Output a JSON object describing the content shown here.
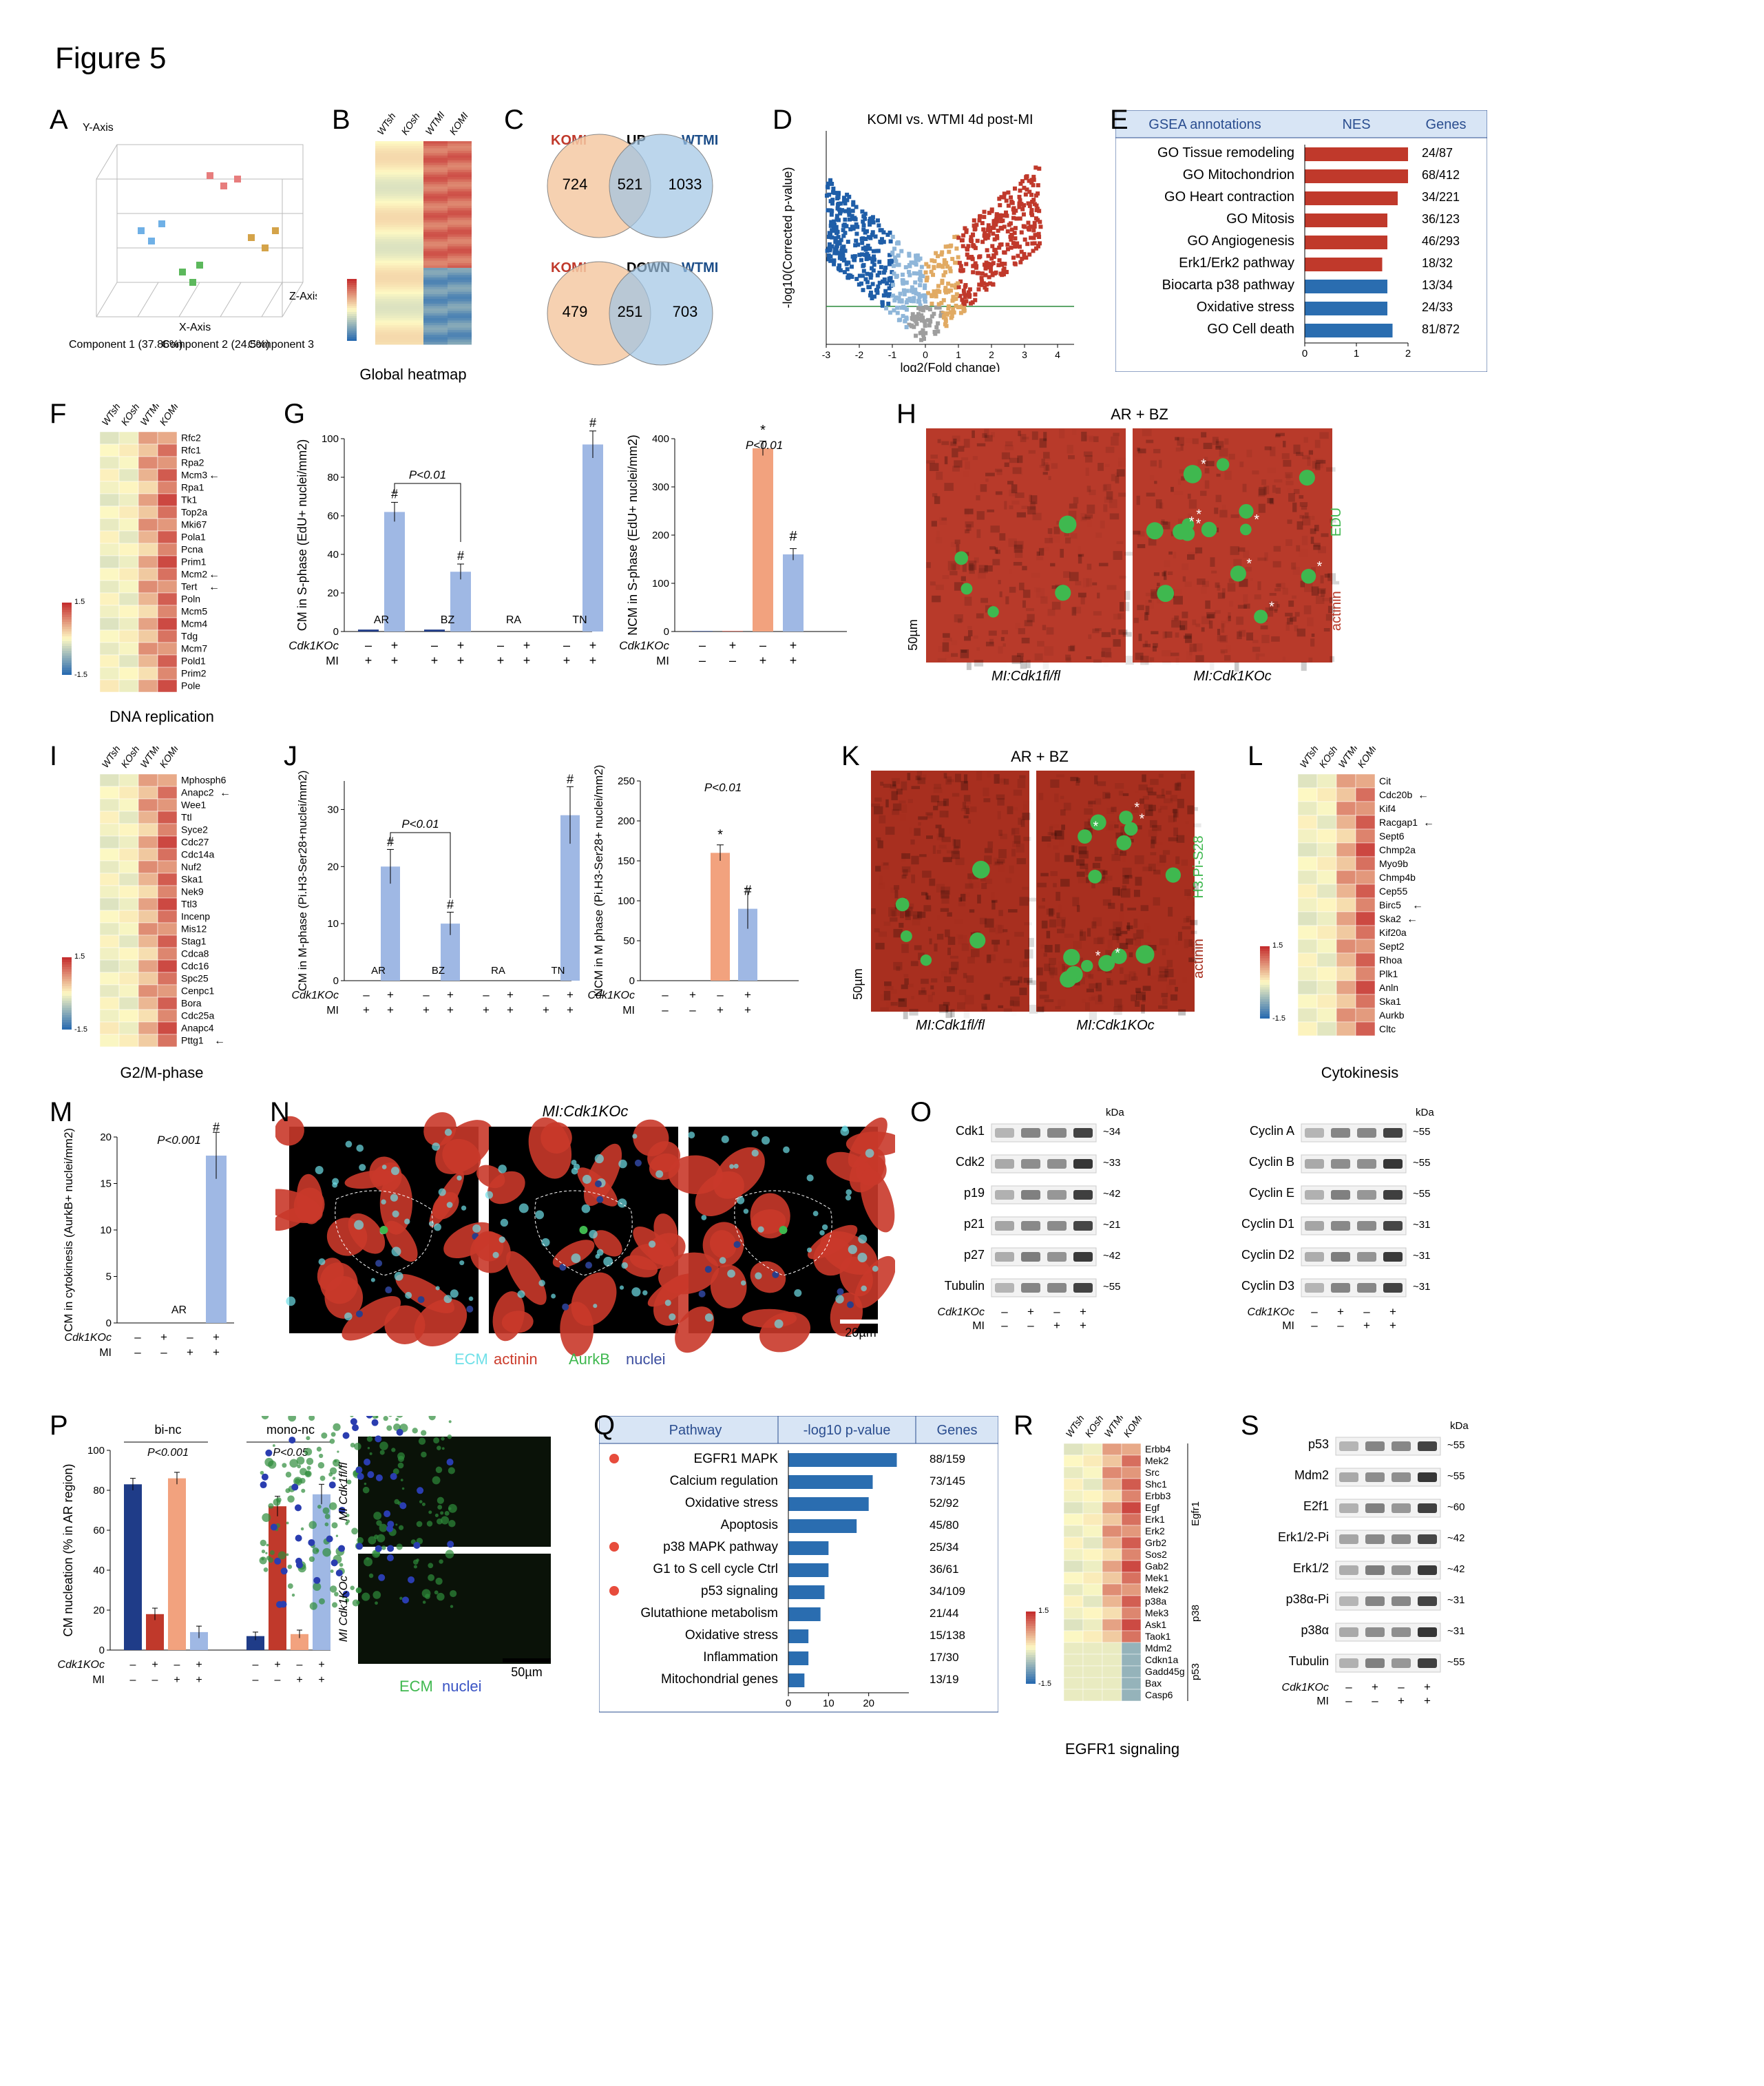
{
  "figure_title": "Figure 5",
  "panels": {
    "A": {
      "label": "A",
      "axes": [
        "X-Axis",
        "Y-Axis",
        "Z-Axis"
      ],
      "components": [
        "Component 1 (37.86%)",
        "Component 2 (24.5%)",
        "Component 3 (21.7%)"
      ],
      "point_colors": [
        "#6fb0e6",
        "#e77d7d",
        "#5cb85c",
        "#d4a349"
      ]
    },
    "B": {
      "label": "B",
      "caption": "Global heatmap",
      "cols": [
        "WTsh",
        "KOsh",
        "WTMI",
        "KOMI"
      ],
      "heatmap_low": "#2b6cb0",
      "heatmap_mid": "#fef9c3",
      "heatmap_high": "#c53030"
    },
    "C": {
      "label": "C",
      "up": {
        "left_label": "KOMI",
        "left_label_color": "#c0392b",
        "right_label": "WTMI",
        "right_label_color": "#1d4e89",
        "title": "UP",
        "left_n": 724,
        "inter_n": 521,
        "right_n": 1033,
        "left_fill": "#f4c9a3",
        "right_fill": "#9fc4e4"
      },
      "down": {
        "left_label": "KOMI",
        "left_label_color": "#c0392b",
        "right_label": "WTMI",
        "right_label_color": "#1d4e89",
        "title": "DOWN",
        "left_n": 479,
        "inter_n": 251,
        "right_n": 703,
        "left_fill": "#f4c9a3",
        "right_fill": "#9fc4e4"
      }
    },
    "D": {
      "label": "D",
      "title": "KOMI vs. WTMI 4d post-MI",
      "xlabel": "log2(Fold change)",
      "ylabel": "-log10(Corrected p-value)",
      "xlim": [
        -3,
        4.5
      ],
      "ylim": [
        0,
        9
      ],
      "colors": {
        "sig_down": "#1f5ea8",
        "ns_down": "#8fb6d9",
        "sig_up": "#c0392b",
        "ns_up": "#e1aa63",
        "ns": "#9e9e9e"
      },
      "threshold_y": 1.6
    },
    "E": {
      "label": "E",
      "headers": [
        "GSEA annotations",
        "NES",
        "Genes"
      ],
      "rows": [
        {
          "name": "GO Tissue remodeling",
          "nes": 2.0,
          "genes": "24/87",
          "neg": false
        },
        {
          "name": "GO Mitochondrion",
          "nes": 2.0,
          "genes": "68/412",
          "neg": false
        },
        {
          "name": "GO Heart contraction",
          "nes": 1.8,
          "genes": "34/221",
          "neg": false
        },
        {
          "name": "GO Mitosis",
          "nes": 1.6,
          "genes": "36/123",
          "neg": false
        },
        {
          "name": "GO Angiogenesis",
          "nes": 1.6,
          "genes": "46/293",
          "neg": false
        },
        {
          "name": "Erk1/Erk2 pathway",
          "nes": 1.5,
          "genes": "18/32",
          "neg": false
        },
        {
          "name": "Biocarta p38 pathway",
          "nes": 1.6,
          "genes": "13/34",
          "neg": true
        },
        {
          "name": "Oxidative stress",
          "nes": 1.6,
          "genes": "24/33",
          "neg": true
        },
        {
          "name": "GO Cell death",
          "nes": 1.7,
          "genes": "81/872",
          "neg": true
        }
      ],
      "bar_pos": "#c0392b",
      "bar_neg": "#2a6db0",
      "bg": "#d8e5f5",
      "xlim": [
        0,
        2
      ]
    },
    "F": {
      "label": "F",
      "caption": "DNA replication",
      "cols": [
        "WTsh",
        "KOsh",
        "WTMI",
        "KOMI"
      ],
      "genes": [
        "Rfc2",
        "Rfc1",
        "Rpa2",
        "Mcm3",
        "Rpa1",
        "Tk1",
        "Top2a",
        "Mki67",
        "Pola1",
        "Pcna",
        "Prim1",
        "Mcm2",
        "Tert",
        "Poln",
        "Mcm5",
        "Mcm4",
        "Tdg",
        "Mcm7",
        "Pold1",
        "Prim2",
        "Pole"
      ],
      "arrows": [
        "Mcm3",
        "Mcm2",
        "Tert"
      ],
      "low": "#2b6cb0",
      "mid": "#fef9c3",
      "high": "#c53030"
    },
    "G": {
      "label": "G",
      "left": {
        "ylabel": "CM in S-phase\n(EdU+ nuclei/mm2)",
        "ylim": [
          0,
          100
        ],
        "ytick": 20,
        "groups": [
          "AR",
          "BZ",
          "RA",
          "TN"
        ],
        "vals_ctrl": [
          1,
          1,
          0,
          0
        ],
        "vals_ko": [
          62,
          31,
          0,
          97
        ],
        "err_ctrl": [
          0,
          0,
          0,
          0
        ],
        "err_ko": [
          5,
          4,
          0,
          7
        ],
        "pvals": [
          {
            "between": [
              0,
              1
            ],
            "text": "P<0.01"
          }
        ],
        "hashes": [
          0,
          1,
          3
        ]
      },
      "right": {
        "ylabel": "NCM in S-phase\n(EdU+ nuclei/mm2)",
        "ylim": [
          0,
          400
        ],
        "ytick": 100,
        "groups": [
          ""
        ],
        "conditions": [
          "-- -",
          "- + -",
          "-- +",
          "- + +"
        ],
        "bars": [
          1,
          1,
          380,
          160
        ],
        "errs": [
          0,
          0,
          15,
          12
        ],
        "colors": [
          "#1f3c88",
          "#c0392b",
          "#f2a27e",
          "#9fb8e4"
        ],
        "anno": [
          {
            "i": 2,
            "text": "*"
          },
          {
            "i": 3,
            "text": "#"
          }
        ],
        "pval": "P<0.01"
      },
      "xlabels": [
        "Cdk1KOc",
        "MI"
      ],
      "bar_ctrl": "#1f3c88",
      "bar_ko": "#9fb8e4"
    },
    "H": {
      "label": "H",
      "title": "AR + BZ",
      "scale": "50µm",
      "red": "#b83a2a",
      "green": "#3fb84f",
      "left_caption": "MI:Cdk1fl/fl",
      "right_caption": "MI:Cdk1KOc",
      "side_label_top": "EDU",
      "side_label_bottom": "actinin"
    },
    "I": {
      "label": "I",
      "caption": "G2/M-phase",
      "cols": [
        "WTsh",
        "KOsh",
        "WTMI",
        "KOMI"
      ],
      "genes": [
        "Mphosph6",
        "Anapc2",
        "Wee1",
        "Ttl",
        "Syce2",
        "Cdc27",
        "Cdc14a",
        "Nuf2",
        "Ska1",
        "Nek9",
        "Ttl3",
        "Incenp",
        "Mis12",
        "Stag1",
        "Cdca8",
        "Cdc16",
        "Spc25",
        "Cenpc1",
        "Bora",
        "Cdc25a",
        "Anapc4",
        "Pttg1"
      ],
      "arrows": [
        "Anapc2",
        "Pttg1"
      ],
      "low": "#2b6cb0",
      "mid": "#fef9c3",
      "high": "#c53030"
    },
    "J": {
      "label": "J",
      "left": {
        "ylabel": "CM in M-phase\n(Pi.H3-Ser28+nuclei/mm2)",
        "ylim": [
          0,
          35
        ],
        "ytick": 10,
        "groups": [
          "AR",
          "BZ",
          "RA",
          "TN"
        ],
        "vals_ctrl": [
          0,
          0,
          0,
          0
        ],
        "vals_ko": [
          20,
          10,
          0,
          29
        ],
        "err_ctrl": [
          0,
          0,
          0,
          0
        ],
        "err_ko": [
          3,
          2,
          0,
          5
        ],
        "pvals": [
          {
            "between": [
              0,
              1
            ],
            "text": "P<0.01"
          }
        ],
        "hashes": [
          0,
          1,
          3
        ]
      },
      "right": {
        "ylabel": "NCM in M phase\n(Pi.H3-Ser28+ nuclei/mm2)",
        "ylim": [
          0,
          250
        ],
        "ytick": 50,
        "bars": [
          0,
          0,
          160,
          90
        ],
        "errs": [
          0,
          0,
          10,
          25
        ],
        "colors": [
          "#1f3c88",
          "#c0392b",
          "#f2a27e",
          "#9fb8e4"
        ],
        "anno": [
          {
            "i": 2,
            "text": "*"
          },
          {
            "i": 3,
            "text": "#"
          }
        ],
        "pval": "P<0.01"
      },
      "xlabels": [
        "Cdk1KOc",
        "MI"
      ],
      "bar_ctrl": "#1f3c88",
      "bar_ko": "#9fb8e4"
    },
    "K": {
      "label": "K",
      "title": "AR + BZ",
      "scale": "50µm",
      "red": "#a82f1f",
      "green": "#3fb84f",
      "left_caption": "MI:Cdk1fl/fl",
      "right_caption": "MI:Cdk1KOc",
      "side_label_top": "H3.Pi-S28",
      "side_label_bottom": "actinin"
    },
    "L": {
      "label": "L",
      "caption": "Cytokinesis",
      "cols": [
        "WTsh",
        "KOsh",
        "WTMI",
        "KOMI"
      ],
      "genes": [
        "Cit",
        "Cdc20b",
        "Kif4",
        "Racgap1",
        "Sept6",
        "Chmp2a",
        "Myo9b",
        "Chmp4b",
        "Cep55",
        "Birc5",
        "Ska2",
        "Kif20a",
        "Sept2",
        "Rhoa",
        "Plk1",
        "Anln",
        "Ska1",
        "Aurkb",
        "Cltc"
      ],
      "arrows": [
        "Cdc20b",
        "Racgap1",
        "Birc5",
        "Ska2"
      ],
      "low": "#2b6cb0",
      "mid": "#fef9c3",
      "high": "#c53030"
    },
    "M": {
      "label": "M",
      "ylabel": "CM in cytokinesis\n(AurkB+ nuclei/mm2)",
      "ylim": [
        0,
        20
      ],
      "ytick": 5,
      "bars": [
        0,
        0,
        0,
        18
      ],
      "errs": [
        0,
        0,
        0,
        2.5
      ],
      "colors": [
        "#1f3c88",
        "#c0392b",
        "#f2a27e",
        "#9fb8e4"
      ],
      "pval": "P<0.001",
      "hash_i": 3,
      "region": "AR",
      "xlabels": [
        "Cdk1KOc",
        "MI"
      ],
      "cond": [
        "–",
        "+",
        "–",
        "+",
        "–",
        "–",
        "+",
        "+"
      ]
    },
    "N": {
      "label": "N",
      "title": "MI:Cdk1KOc",
      "scale": "20µm",
      "legend": [
        {
          "t": "ECM",
          "c": "#6fe0e8"
        },
        {
          "t": "actinin",
          "c": "#cc3c2c"
        },
        {
          "t": "AurkB",
          "c": "#3fb84f"
        },
        {
          "t": "nuclei",
          "c": "#3d4fa0"
        }
      ]
    },
    "O": {
      "label": "O",
      "left": [
        {
          "n": "Cdk1",
          "kda": "~34"
        },
        {
          "n": "Cdk2",
          "kda": "~33"
        },
        {
          "n": "p19",
          "kda": "~42"
        },
        {
          "n": "p21",
          "kda": "~21"
        },
        {
          "n": "p27",
          "kda": "~42"
        },
        {
          "n": "Tubulin",
          "kda": "~55"
        }
      ],
      "right": [
        {
          "n": "Cyclin A",
          "kda": "~55"
        },
        {
          "n": "Cyclin B",
          "kda": "~55"
        },
        {
          "n": "Cyclin E",
          "kda": "~55"
        },
        {
          "n": "Cyclin D1",
          "kda": "~31"
        },
        {
          "n": "Cyclin D2",
          "kda": "~31"
        },
        {
          "n": "Cyclin D3",
          "kda": "~31"
        }
      ],
      "lanes": [
        "Cdk1KOc",
        "MI"
      ],
      "cond": [
        "–",
        "+",
        "–",
        "+",
        "–",
        "–",
        "+",
        "+"
      ],
      "kda_label": "kDa"
    },
    "P": {
      "label": "P",
      "ylabel": "CM nucleation\n(% in AR region)",
      "ylim": [
        0,
        100
      ],
      "ytick": 20,
      "groups": [
        "bi-nc",
        "mono-nc"
      ],
      "bars_bi": [
        83,
        18,
        86,
        9
      ],
      "errs_bi": [
        3,
        3,
        3,
        3
      ],
      "bars_mono": [
        7,
        72,
        8,
        78
      ],
      "errs_mono": [
        2,
        5,
        2,
        5
      ],
      "colors": [
        "#1f3c88",
        "#c0392b",
        "#f2a27e",
        "#9fb8e4"
      ],
      "pvals": [
        "P<0.001",
        "P<0.05"
      ],
      "xlabels": [
        "Cdk1KOc",
        "MI"
      ],
      "micro_legend": [
        {
          "t": "ECM",
          "c": "#3fb84f"
        },
        {
          "t": "nuclei",
          "c": "#3a54c4"
        }
      ],
      "scale": "50µm",
      "img_left": "MI Cdk1fl/fl",
      "img_right": "MI Cdk1KOc"
    },
    "Q": {
      "label": "Q",
      "headers": [
        "Pathway",
        "-log10 p-value",
        "Genes"
      ],
      "rows": [
        {
          "name": "EGFR1 MAPK",
          "v": 27,
          "genes": "88/159",
          "dot": true
        },
        {
          "name": "Calcium regulation",
          "v": 21,
          "genes": "73/145",
          "dot": false
        },
        {
          "name": "Oxidative stress",
          "v": 20,
          "genes": "52/92",
          "dot": false
        },
        {
          "name": "Apoptosis",
          "v": 17,
          "genes": "45/80",
          "dot": false
        },
        {
          "name": "p38 MAPK pathway",
          "v": 10,
          "genes": "25/34",
          "dot": true
        },
        {
          "name": "G1 to S cell cycle Ctrl",
          "v": 10,
          "genes": "36/61",
          "dot": false
        },
        {
          "name": "p53 signaling",
          "v": 9,
          "genes": "34/109",
          "dot": true
        },
        {
          "name": "Glutathione metabolism",
          "v": 8,
          "genes": "21/44",
          "dot": false
        },
        {
          "name": "Oxidative stress",
          "v": 5,
          "genes": "15/138",
          "dot": false
        },
        {
          "name": "Inflammation",
          "v": 5,
          "genes": "17/30",
          "dot": false
        },
        {
          "name": "Mitochondrial genes",
          "v": 4,
          "genes": "13/19",
          "dot": false
        }
      ],
      "bg": "#d8e5f5",
      "bar": "#2a6db0",
      "dot_color": "#e74c3c",
      "xlim": [
        0,
        30
      ],
      "xticks": [
        0,
        10,
        20
      ]
    },
    "R": {
      "label": "R",
      "caption": "EGFR1 signaling",
      "cols": [
        "WTsh",
        "KOsh",
        "WTMI",
        "KOMI"
      ],
      "genes": [
        "Erbb4",
        "Mek2",
        "Src",
        "Shc1",
        "Erbb3",
        "Egf",
        "Erk1",
        "Erk2",
        "Grb2",
        "Sos2",
        "Gab2",
        "Mek1",
        "Mek2",
        "p38a",
        "Mek3",
        "Ask1",
        "Taok1",
        "Mdm2",
        "Cdkn1a",
        "Gadd45g",
        "Bax",
        "Casp6"
      ],
      "low": "#2b6cb0",
      "mid": "#fef9c3",
      "high": "#c53030",
      "groups": [
        {
          "name": "Egfr1",
          "range": [
            0,
            12
          ]
        },
        {
          "name": "p38",
          "range": [
            12,
            17
          ]
        },
        {
          "name": "p53",
          "range": [
            17,
            22
          ]
        }
      ]
    },
    "S": {
      "label": "S",
      "bands": [
        {
          "n": "p53",
          "kda": "~55"
        },
        {
          "n": "Mdm2",
          "kda": "~55"
        },
        {
          "n": "E2f1",
          "kda": "~60"
        },
        {
          "n": "Erk1/2-Pi",
          "kda": "~42"
        },
        {
          "n": "Erk1/2",
          "kda": "~42"
        },
        {
          "n": "p38α-Pi",
          "kda": "~31"
        },
        {
          "n": "p38α",
          "kda": "~31"
        },
        {
          "n": "Tubulin",
          "kda": "~55"
        }
      ],
      "lanes": [
        "Cdk1KOc",
        "MI"
      ],
      "cond": [
        "–",
        "+",
        "–",
        "+",
        "–",
        "–",
        "+",
        "+"
      ],
      "kda_label": "kDa"
    }
  }
}
